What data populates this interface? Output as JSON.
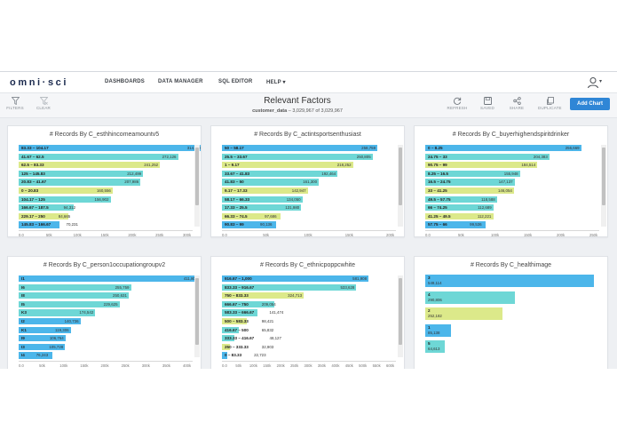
{
  "app": {
    "logo": "omni·sci",
    "nav": [
      "DASHBOARDS",
      "DATA MANAGER",
      "SQL EDITOR",
      "HELP ▾"
    ],
    "user_caret": "▾"
  },
  "toolbar": {
    "filters_label": "FILTERS",
    "clear_label": "CLEAR",
    "title": "Relevant Factors",
    "table_name": "customer_data",
    "record_count": "3,029,967 of 3,029,967",
    "refresh_label": "REFRESH",
    "saved_label": "SAVED",
    "share_label": "SHARE",
    "duplicate_label": "DUPLICATE",
    "add_chart_label": "Add Chart"
  },
  "colors": {
    "blue": "#4cb6ea",
    "teal": "#6ed7d6",
    "yellow": "#dce98a",
    "accent": "#2f86d6"
  },
  "charts": [
    {
      "title": "# Records By C_esthhincomeamountv5",
      "type": "bar",
      "xmax": 300000,
      "ticks": [
        "0.0",
        "50k",
        "100k",
        "150k",
        "200k",
        "250k",
        "300k"
      ],
      "bars": [
        {
          "label": "83.33 – 104.17",
          "value": 314736,
          "display": "314,736",
          "color": "blue"
        },
        {
          "label": "41.67 – 62.5",
          "value": 272126,
          "display": "272,126",
          "color": "teal"
        },
        {
          "label": "62.5 – 83.33",
          "value": 241252,
          "display": "241,252",
          "color": "yellow"
        },
        {
          "label": "125 – 145.83",
          "value": 212499,
          "display": "212,499",
          "color": "teal"
        },
        {
          "label": "20.83 – 41.67",
          "value": 207986,
          "display": "207,986",
          "color": "teal"
        },
        {
          "label": "0 – 20.83",
          "value": 160556,
          "display": "160,556",
          "color": "yellow"
        },
        {
          "label": "104.17 – 125",
          "value": 156902,
          "display": "156,902",
          "color": "teal"
        },
        {
          "label": "166.67 – 187.5",
          "value": 94312,
          "display": "94,312",
          "color": "teal"
        },
        {
          "label": "229.17 – 250",
          "value": 84665,
          "display": "84,665",
          "color": "yellow"
        },
        {
          "label": "145.83 – 166.67",
          "value": 70231,
          "display": "70,231",
          "color": "blue"
        }
      ]
    },
    {
      "title": "# Records By C_actintsportsenthusiast",
      "type": "bar",
      "xmax": 260000,
      "ticks": [
        "0.0",
        "50k",
        "100k",
        "150k",
        "200k"
      ],
      "bars": [
        {
          "label": "50 – 58.17",
          "value": 258759,
          "display": "258,759",
          "color": "blue"
        },
        {
          "label": "25.5 – 33.67",
          "value": 250805,
          "display": "250,805",
          "color": "teal"
        },
        {
          "label": "1 – 9.17",
          "value": 218252,
          "display": "218,252",
          "color": "yellow"
        },
        {
          "label": "33.67 – 41.83",
          "value": 192464,
          "display": "192,464",
          "color": "teal"
        },
        {
          "label": "41.83 – 50",
          "value": 161300,
          "display": "161,300",
          "color": "teal"
        },
        {
          "label": "9.17 – 17.33",
          "value": 142947,
          "display": "142,947",
          "color": "yellow"
        },
        {
          "label": "58.17 – 66.33",
          "value": 134050,
          "display": "134,050",
          "color": "teal"
        },
        {
          "label": "17.33 – 25.5",
          "value": 131980,
          "display": "131,980",
          "color": "teal"
        },
        {
          "label": "66.33 – 74.5",
          "value": 97686,
          "display": "97,686",
          "color": "yellow"
        },
        {
          "label": "90.83 – 99",
          "value": 90136,
          "display": "90,136",
          "color": "blue"
        }
      ]
    },
    {
      "title": "# Records By C_buyerhighendspiritdrinker",
      "type": "bar",
      "xmax": 260000,
      "ticks": [
        "0.0",
        "50k",
        "100k",
        "150k",
        "200k",
        "250k"
      ],
      "bars": [
        {
          "label": "0 – 8.25",
          "value": 256669,
          "display": "256,669",
          "color": "blue"
        },
        {
          "label": "24.75 – 33",
          "value": 204383,
          "display": "204,383",
          "color": "teal"
        },
        {
          "label": "90.75 – 99",
          "value": 184514,
          "display": "184,514",
          "color": "yellow"
        },
        {
          "label": "8.25 – 16.5",
          "value": 155948,
          "display": "155,948",
          "color": "teal"
        },
        {
          "label": "16.5 – 24.75",
          "value": 147137,
          "display": "147,137",
          "color": "teal"
        },
        {
          "label": "33 – 41.25",
          "value": 146054,
          "display": "146,054",
          "color": "yellow"
        },
        {
          "label": "49.5 – 57.75",
          "value": 118588,
          "display": "118,588",
          "color": "teal"
        },
        {
          "label": "66 – 74.25",
          "value": 112689,
          "display": "112,689",
          "color": "teal"
        },
        {
          "label": "41.25 – 49.5",
          "value": 112221,
          "display": "112,221",
          "color": "yellow"
        },
        {
          "label": "57.75 – 66",
          "value": 99536,
          "display": "99,536",
          "color": "blue"
        }
      ]
    },
    {
      "title": "# Records By C_person1occupationgroupv2",
      "type": "bar",
      "xmax": 400000,
      "ticks": [
        "0.0",
        "50k",
        "100k",
        "150k",
        "200k",
        "250k",
        "300k",
        "350k",
        "400k"
      ],
      "bars": [
        {
          "label": "I1",
          "value": 411809,
          "display": "411,809",
          "color": "blue"
        },
        {
          "label": "I6",
          "value": 255759,
          "display": "255,759",
          "color": "teal"
        },
        {
          "label": "I8",
          "value": 250631,
          "display": "250,631",
          "color": "teal"
        },
        {
          "label": "I5",
          "value": 229625,
          "display": "229,625",
          "color": "teal"
        },
        {
          "label": "K3",
          "value": 174542,
          "display": "174,542",
          "color": "teal"
        },
        {
          "label": "I2",
          "value": 140736,
          "display": "140,736",
          "color": "blue"
        },
        {
          "label": "K1",
          "value": 119306,
          "display": "119,306",
          "color": "blue"
        },
        {
          "label": "I9",
          "value": 106764,
          "display": "106,764",
          "color": "blue"
        },
        {
          "label": "I3",
          "value": 105728,
          "display": "105,728",
          "color": "blue"
        },
        {
          "label": "I4",
          "value": 76243,
          "display": "76,243",
          "color": "blue"
        }
      ]
    },
    {
      "title": "# Records By C_ethnicpoppcwhite",
      "type": "bar",
      "xmax": 620000,
      "ticks": [
        "0.0",
        "50k",
        "100k",
        "150k",
        "200k",
        "250k",
        "300k",
        "350k",
        "400k",
        "450k",
        "500k",
        "550k",
        "600k"
      ],
      "bars": [
        {
          "label": "916.67 – 1,000",
          "value": 581908,
          "display": "581,908",
          "color": "blue"
        },
        {
          "label": "833.33 – 916.67",
          "value": 533628,
          "display": "533,628",
          "color": "teal"
        },
        {
          "label": "750 – 833.33",
          "value": 324713,
          "display": "324,713",
          "color": "yellow"
        },
        {
          "label": "666.67 – 750",
          "value": 209054,
          "display": "209,054",
          "color": "teal"
        },
        {
          "label": "583.33 – 666.67",
          "value": 141474,
          "display": "141,474",
          "color": "teal"
        },
        {
          "label": "500 – 583.33",
          "value": 98421,
          "display": "98,421",
          "color": "yellow"
        },
        {
          "label": "416.67 – 500",
          "value": 65832,
          "display": "65,832",
          "color": "teal"
        },
        {
          "label": "333.33 – 416.67",
          "value": 48127,
          "display": "48,127",
          "color": "teal"
        },
        {
          "label": "250 – 333.33",
          "value": 32903,
          "display": "32,903",
          "color": "yellow"
        },
        {
          "label": "0 – 83.33",
          "value": 22723,
          "display": "22,723",
          "color": "blue"
        }
      ]
    },
    {
      "title": "# Records By C_healthimage",
      "type": "bar",
      "xmax": 549114,
      "ticks": [],
      "bars": [
        {
          "label": "3",
          "value": 549114,
          "display": "549,114",
          "color": "blue"
        },
        {
          "label": "4",
          "value": 290806,
          "display": "290,806",
          "color": "teal"
        },
        {
          "label": "2",
          "value": 252182,
          "display": "252,182",
          "color": "yellow"
        },
        {
          "label": "1",
          "value": 85138,
          "display": "85,138",
          "color": "blue"
        },
        {
          "label": "5",
          "value": 64613,
          "display": "64,613",
          "color": "teal"
        }
      ]
    }
  ],
  "chart_data": [
    {
      "type": "bar",
      "title": "# Records By C_esthhincomeamountv5",
      "categories": [
        "83.33 – 104.17",
        "41.67 – 62.5",
        "62.5 – 83.33",
        "125 – 145.83",
        "20.83 – 41.67",
        "0 – 20.83",
        "104.17 – 125",
        "166.67 – 187.5",
        "229.17 – 250",
        "145.83 – 166.67"
      ],
      "values": [
        314736,
        272126,
        241252,
        212499,
        207986,
        160556,
        156902,
        94312,
        84665,
        70231
      ],
      "xlim": [
        0,
        300000
      ]
    },
    {
      "type": "bar",
      "title": "# Records By C_actintsportsenthusiast",
      "categories": [
        "50 – 58.17",
        "25.5 – 33.67",
        "1 – 9.17",
        "33.67 – 41.83",
        "41.83 – 50",
        "9.17 – 17.33",
        "58.17 – 66.33",
        "17.33 – 25.5",
        "66.33 – 74.5",
        "90.83 – 99"
      ],
      "values": [
        258759,
        250805,
        218252,
        192464,
        161300,
        142947,
        134050,
        131980,
        97686,
        90136
      ],
      "xlim": [
        0,
        260000
      ]
    },
    {
      "type": "bar",
      "title": "# Records By C_buyerhighendspiritdrinker",
      "categories": [
        "0 – 8.25",
        "24.75 – 33",
        "90.75 – 99",
        "8.25 – 16.5",
        "16.5 – 24.75",
        "33 – 41.25",
        "49.5 – 57.75",
        "66 – 74.25",
        "41.25 – 49.5",
        "57.75 – 66"
      ],
      "values": [
        256669,
        204383,
        184514,
        155948,
        147137,
        146054,
        118588,
        112689,
        112221,
        99536
      ],
      "xlim": [
        0,
        260000
      ]
    },
    {
      "type": "bar",
      "title": "# Records By C_person1occupationgroupv2",
      "categories": [
        "I1",
        "I6",
        "I8",
        "I5",
        "K3",
        "I2",
        "K1",
        "I9",
        "I3",
        "I4"
      ],
      "values": [
        411809,
        255759,
        250631,
        229625,
        174542,
        140736,
        119306,
        106764,
        105728,
        76243
      ],
      "xlim": [
        0,
        400000
      ]
    },
    {
      "type": "bar",
      "title": "# Records By C_ethnicpoppcwhite",
      "categories": [
        "916.67 – 1,000",
        "833.33 – 916.67",
        "750 – 833.33",
        "666.67 – 750",
        "583.33 – 666.67",
        "500 – 583.33",
        "416.67 – 500",
        "333.33 – 416.67",
        "250 – 333.33",
        "0 – 83.33"
      ],
      "values": [
        581908,
        533628,
        324713,
        209054,
        141474,
        98421,
        65832,
        48127,
        32903,
        22723
      ],
      "xlim": [
        0,
        620000
      ]
    },
    {
      "type": "bar",
      "title": "# Records By C_healthimage",
      "categories": [
        "3",
        "4",
        "2",
        "1",
        "5"
      ],
      "values": [
        549114,
        290806,
        252182,
        85138,
        64613
      ]
    }
  ]
}
